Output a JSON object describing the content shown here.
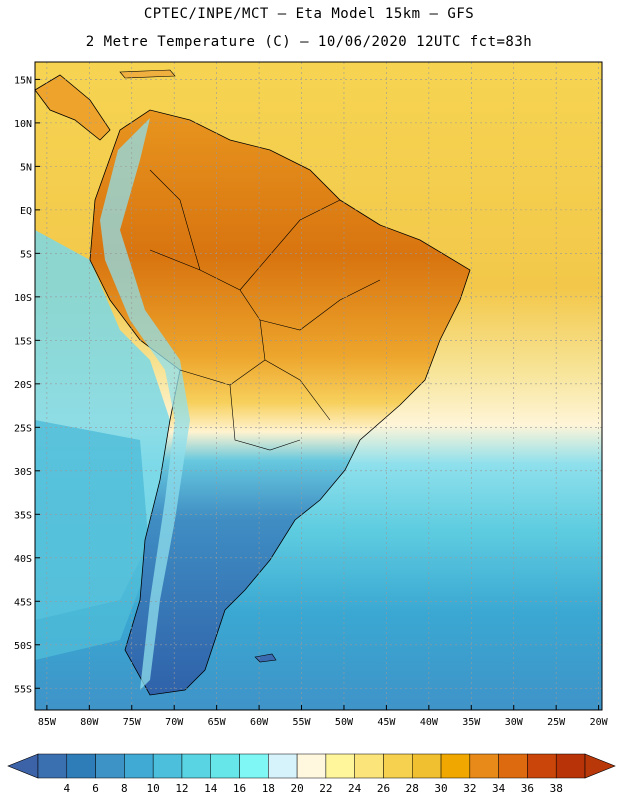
{
  "title_line1": "CPTEC/INPE/MCT –  Eta Model 15km – GFS",
  "title_line2": "2 Metre Temperature (C) – 10/06/2020 12UTC fct=83h",
  "lat_labels": [
    "15N",
    "10N",
    "5N",
    "EQ",
    "5S",
    "10S",
    "15S",
    "20S",
    "25S",
    "30S",
    "35S",
    "40S",
    "45S",
    "50S",
    "55S"
  ],
  "lon_labels": [
    "85W",
    "80W",
    "75W",
    "70W",
    "65W",
    "60W",
    "55W",
    "50W",
    "45W",
    "40W",
    "35W",
    "30W",
    "25W",
    "20W"
  ],
  "colorbar": {
    "labels": [
      "4",
      "6",
      "8",
      "10",
      "12",
      "14",
      "16",
      "18",
      "20",
      "22",
      "24",
      "26",
      "28",
      "30",
      "32",
      "34",
      "36",
      "38"
    ],
    "colors": [
      "#3a6fb0",
      "#2f7db8",
      "#3d93c6",
      "#40a9d4",
      "#4cbfdc",
      "#59d4e2",
      "#66e6e8",
      "#7ef7f5",
      "#d6f3fb",
      "#fff8df",
      "#fff59a",
      "#fbe47a",
      "#f5d14f",
      "#f0c030",
      "#f0a800",
      "#e88a1a",
      "#dd6a0e",
      "#c9450a",
      "#b83408"
    ],
    "lt_color": "#3c62a8",
    "gt_color": "#b8380a"
  },
  "colors": {
    "ocean_north": "#f6d250",
    "ocean_warm": "#f2c43a",
    "ocean_cool": "#5cc6da",
    "ocean_south": "#3aa6d0",
    "land_hot": "#d4700f",
    "land_warm": "#eea22a",
    "land_mild": "#f7cf5c",
    "land_cool": "#3a6bb0",
    "grid": "#999999"
  }
}
